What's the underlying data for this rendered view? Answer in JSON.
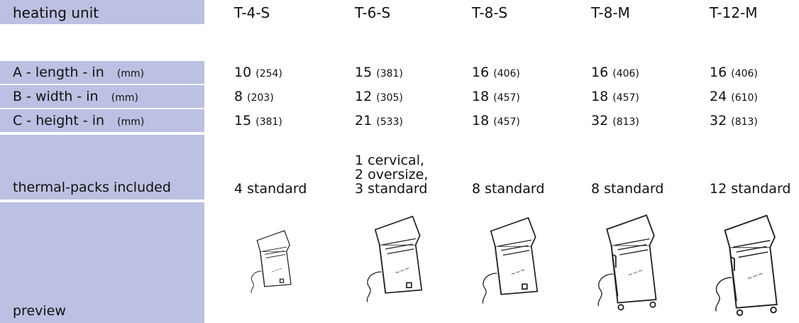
{
  "header": {
    "label": "heating unit",
    "units": [
      "T-4-S",
      "T-6-S",
      "T-8-S",
      "T-8-M",
      "T-12-M"
    ]
  },
  "rows": [
    {
      "label": "A - length - in",
      "unit": "(mm)",
      "cells": [
        {
          "in": "10",
          "mm": "(254)"
        },
        {
          "in": "15",
          "mm": "(381)"
        },
        {
          "in": "16",
          "mm": "(406)"
        },
        {
          "in": "16",
          "mm": "(406)"
        },
        {
          "in": "16",
          "mm": "(406)"
        }
      ]
    },
    {
      "label": "B - width - in",
      "unit": "(mm)",
      "cells": [
        {
          "in": "8",
          "mm": "(203)"
        },
        {
          "in": "12",
          "mm": "(305)"
        },
        {
          "in": "18",
          "mm": "(457)"
        },
        {
          "in": "18",
          "mm": "(457)"
        },
        {
          "in": "24",
          "mm": "(610)"
        }
      ]
    },
    {
      "label": "C - height - in",
      "unit": "(mm)",
      "cells": [
        {
          "in": "15",
          "mm": "(381)"
        },
        {
          "in": "21",
          "mm": "(533)"
        },
        {
          "in": "18",
          "mm": "(457)"
        },
        {
          "in": "32",
          "mm": "(813)"
        },
        {
          "in": "32",
          "mm": "(813)"
        }
      ]
    }
  ],
  "packs": {
    "label": "thermal-packs included",
    "cells": [
      [
        "4 standard"
      ],
      [
        "1 cervical,",
        "2 oversize,",
        "3 standard"
      ],
      [
        "8 standard"
      ],
      [
        "8 standard"
      ],
      [
        "12 standard"
      ]
    ]
  },
  "preview": {
    "label": "preview"
  }
}
